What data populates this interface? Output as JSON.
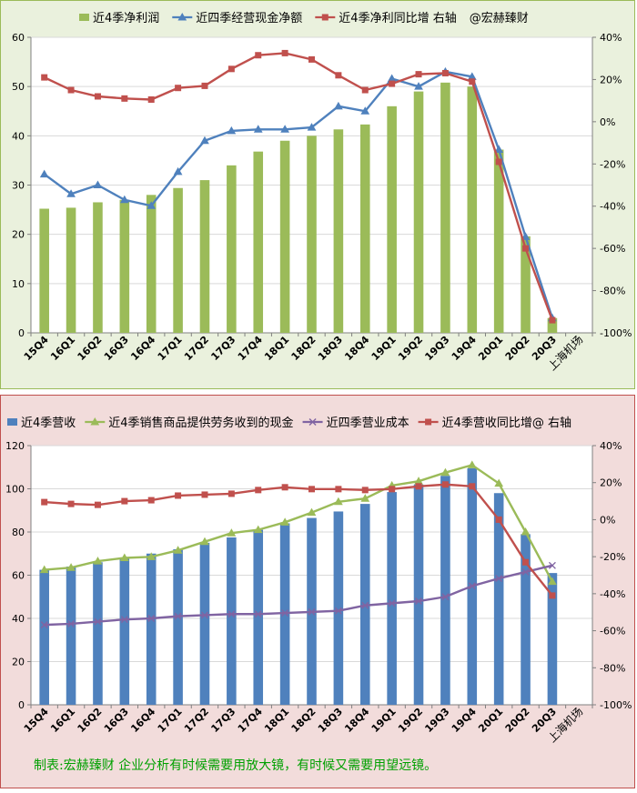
{
  "charts": {
    "c1": {
      "legend": [
        {
          "label": "近4季净利润",
          "kind": "bar",
          "color": "#9bbb59"
        },
        {
          "label": "近四季经营现金净额",
          "kind": "line-triangle",
          "color": "#4f81bd"
        },
        {
          "label": "近4季净利同比增 右轴",
          "kind": "line-square",
          "color": "#c0504d"
        },
        {
          "label": "@宏赫臻财",
          "kind": "text",
          "color": "#000000"
        }
      ],
      "left_ticks": [
        "0",
        "10",
        "20",
        "30",
        "40",
        "50",
        "60"
      ],
      "right_ticks": [
        "-100%",
        "-80%",
        "-60%",
        "-40%",
        "-20%",
        "0%",
        "20%",
        "40%"
      ],
      "source_label": "上海机场"
    },
    "c2": {
      "legend": [
        {
          "label": "近4季营收",
          "kind": "bar",
          "color": "#4f81bd"
        },
        {
          "label": "近4季销售商品提供劳务收到的现金",
          "kind": "line-triangle",
          "color": "#9bbb59"
        },
        {
          "label": "近四季营业成本",
          "kind": "line-x",
          "color": "#8064a2"
        },
        {
          "label": "近4季营收同比增@ 右轴",
          "kind": "line-square",
          "color": "#c0504d"
        }
      ],
      "left_ticks": [
        "0",
        "20",
        "40",
        "60",
        "80",
        "100",
        "120"
      ],
      "right_ticks": [
        "-100%",
        "-80%",
        "-60%",
        "-40%",
        "-20%",
        "0%",
        "20%",
        "40%"
      ],
      "source_label": "上海机场",
      "footer": "制表:宏赫臻财    企业分析有时候需要用放大镜，有时候又需要用望远镜。"
    }
  },
  "chart_data": [
    {
      "type": "bar",
      "categories": [
        "15Q4",
        "16Q1",
        "16Q2",
        "16Q3",
        "16Q4",
        "17Q1",
        "17Q2",
        "17Q3",
        "17Q4",
        "18Q1",
        "18Q2",
        "18Q3",
        "18Q4",
        "19Q1",
        "19Q2",
        "19Q3",
        "19Q4",
        "20Q1",
        "20Q2",
        "20Q3"
      ],
      "ylim": [
        0,
        60
      ],
      "y2lim": [
        -100,
        40
      ],
      "series": [
        {
          "name": "近4季净利润",
          "kind": "bar",
          "axis": "left",
          "color": "#9bbb59",
          "values": [
            25.2,
            25.4,
            26.5,
            27.0,
            28.0,
            29.4,
            31.0,
            34.0,
            36.8,
            39.0,
            40.0,
            41.3,
            42.3,
            46.0,
            49.0,
            50.8,
            50.0,
            37.2,
            19.6,
            3.0
          ]
        },
        {
          "name": "近四季经营现金净额",
          "kind": "line",
          "axis": "left",
          "marker": "triangle",
          "color": "#4f81bd",
          "values": [
            32.2,
            28.2,
            30.0,
            27.0,
            25.8,
            32.7,
            39.0,
            41.0,
            41.3,
            41.3,
            41.7,
            46.0,
            45.0,
            51.6,
            50.0,
            53.0,
            52.0,
            37.2,
            19.5,
            3.0
          ]
        },
        {
          "name": "近4季净利同比增 右轴",
          "kind": "line",
          "axis": "right",
          "marker": "square",
          "color": "#c0504d",
          "values": [
            21,
            15,
            12,
            11,
            10.5,
            16,
            17,
            25,
            31.5,
            32.5,
            29.5,
            22,
            15,
            18,
            22.5,
            23,
            19,
            -19,
            -60,
            -94
          ]
        }
      ]
    },
    {
      "type": "bar",
      "categories": [
        "15Q4",
        "16Q1",
        "16Q2",
        "16Q3",
        "16Q4",
        "17Q1",
        "17Q2",
        "17Q3",
        "17Q4",
        "18Q1",
        "18Q2",
        "18Q3",
        "18Q4",
        "19Q1",
        "19Q2",
        "19Q3",
        "19Q4",
        "20Q1",
        "20Q2",
        "20Q3"
      ],
      "ylim": [
        0,
        120
      ],
      "y2lim": [
        -100,
        40
      ],
      "series": [
        {
          "name": "近4季营收",
          "kind": "bar",
          "axis": "left",
          "color": "#4f81bd",
          "values": [
            62.5,
            64.0,
            66.0,
            68.0,
            70.0,
            72.0,
            75.0,
            77.5,
            81.0,
            84.0,
            86.5,
            89.5,
            93.0,
            98.5,
            102.0,
            106.0,
            109.5,
            98.0,
            79.0,
            61.0
          ]
        },
        {
          "name": "近4季销售商品提供劳务收到的现金",
          "kind": "line",
          "axis": "left",
          "marker": "triangle",
          "color": "#9bbb59",
          "values": [
            62.5,
            63.5,
            66.5,
            68.0,
            68.5,
            71.5,
            75.5,
            79.5,
            81.0,
            84.5,
            89.0,
            94.0,
            95.5,
            101.5,
            103.5,
            107.5,
            111.0,
            102.5,
            80.0,
            57.0
          ]
        },
        {
          "name": "近四季营业成本",
          "kind": "line",
          "axis": "left",
          "marker": "x",
          "color": "#8064a2",
          "values": [
            37.0,
            37.5,
            38.5,
            39.5,
            40.0,
            41.0,
            41.5,
            42.0,
            42.0,
            42.5,
            43.0,
            43.5,
            46.0,
            47.0,
            48.0,
            50.0,
            55.0,
            58.5,
            61.5,
            64.5
          ]
        },
        {
          "name": "近4季营收同比增@ 右轴",
          "kind": "line",
          "axis": "right",
          "marker": "square",
          "color": "#c0504d",
          "values": [
            9.5,
            8.5,
            8.0,
            10.0,
            10.5,
            13.0,
            13.5,
            14.0,
            16.0,
            17.5,
            16.5,
            16.5,
            16.0,
            16.5,
            18.0,
            19.0,
            18.0,
            0,
            -23,
            -41
          ]
        }
      ]
    }
  ]
}
